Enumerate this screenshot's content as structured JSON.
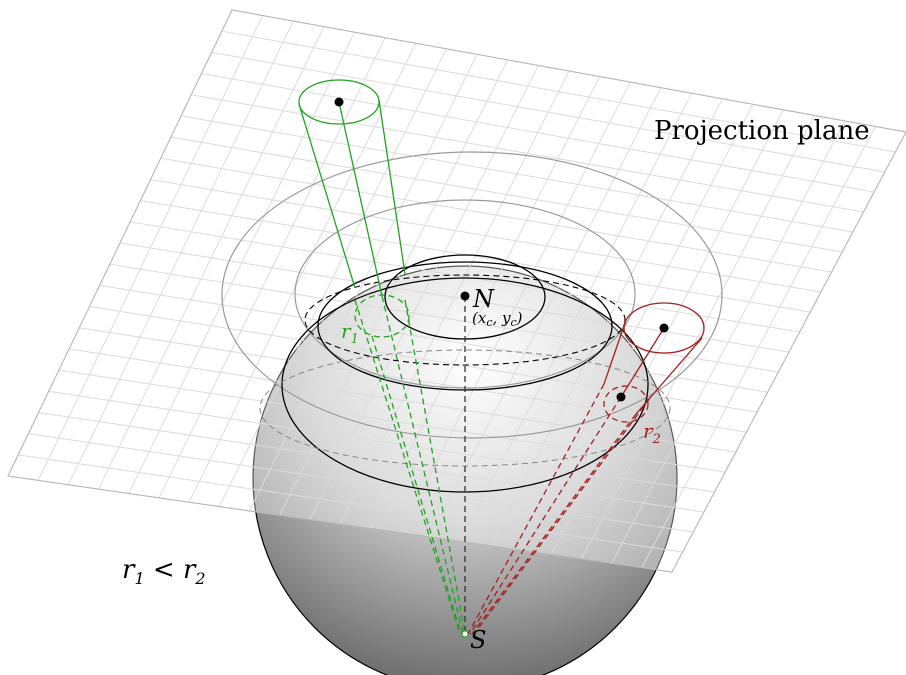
{
  "labels": {
    "plane": "Projection plane",
    "north_pole": "N",
    "north_coords": "(x",
    "north_coords_sub": "c",
    "north_coords_mid": ", y",
    "north_coords_sub2": "c",
    "north_coords_end": ")",
    "south_pole": "S",
    "r1": "r",
    "r1_sub": "1",
    "r2": "r",
    "r2_sub": "2",
    "inequality_a": "r",
    "inequality_a_sub": "1",
    "inequality_op": " < ",
    "inequality_b": "r",
    "inequality_b_sub": "2"
  },
  "colors": {
    "grid": "#c8c8c8",
    "green": "#22a322",
    "red": "#a31f1f",
    "ring": "#9a9a9a",
    "black": "#000000"
  }
}
